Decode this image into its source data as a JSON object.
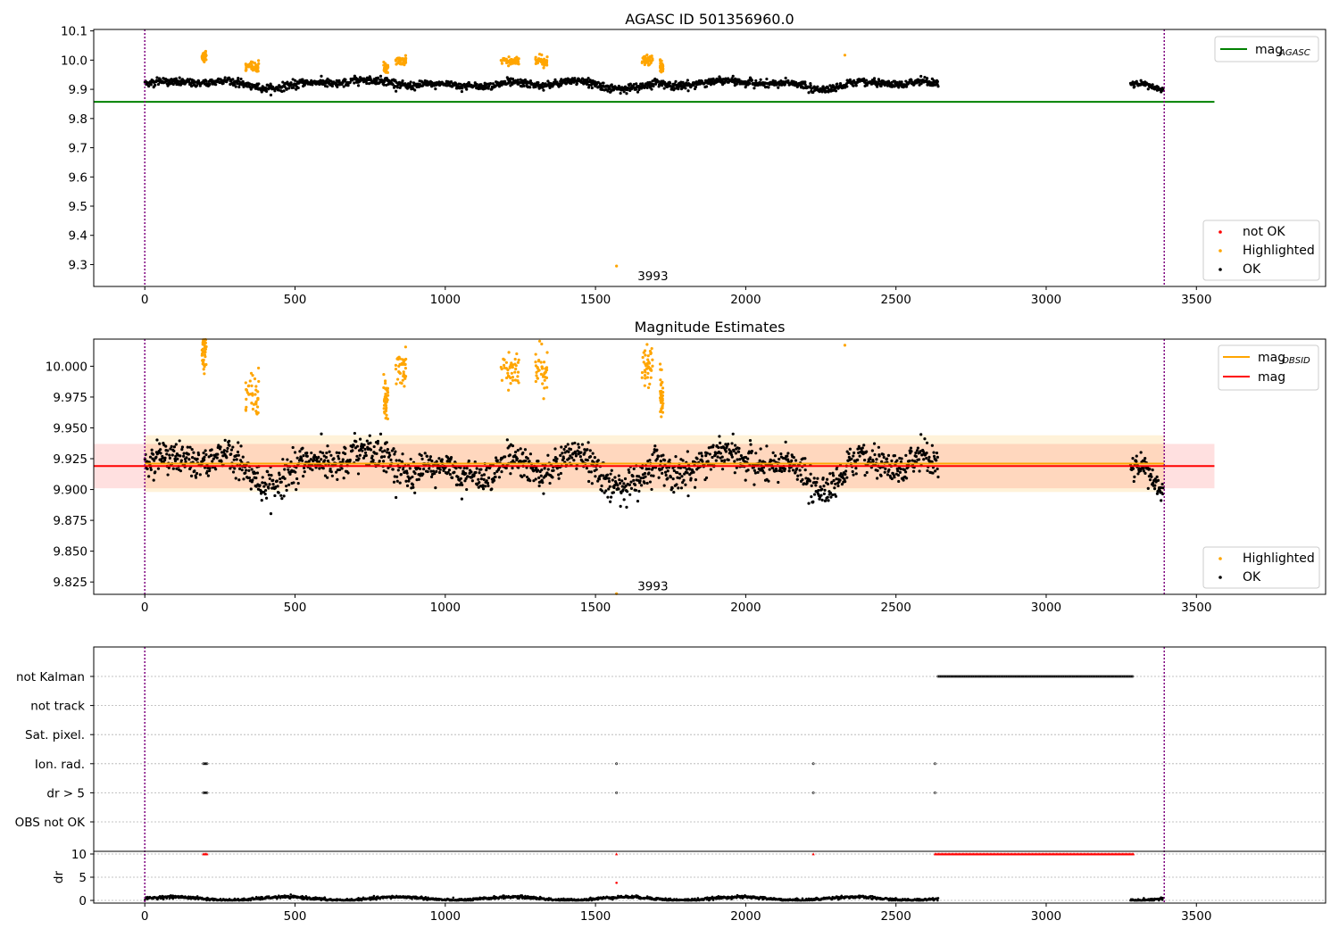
{
  "chart_data": [
    {
      "type": "scatter",
      "title": "AGASC ID 501356960.0",
      "xlim": [
        -170,
        3930
      ],
      "ylim": [
        9.225,
        10.105
      ],
      "xticks": [
        "0",
        "500",
        "1000",
        "1500",
        "2000",
        "2500",
        "3000",
        "3500"
      ],
      "yticks": [
        "9.3",
        "9.4",
        "9.5",
        "9.6",
        "9.7",
        "9.8",
        "9.9",
        "10.0",
        "10.1"
      ],
      "grid": false,
      "legend_upper": {
        "placement": "top-right",
        "entries": [
          {
            "label": "mag",
            "subscript": "AGASC",
            "color": "#008000"
          }
        ]
      },
      "legend_lower": {
        "placement": "bottom-right",
        "entries": [
          {
            "label": "not OK",
            "color": "#ff0000"
          },
          {
            "label": "Highlighted",
            "color": "#ffa500"
          },
          {
            "label": "OK",
            "color": "#000000"
          }
        ]
      },
      "mag_agasc": {
        "value": 9.857,
        "x_range": [
          -170,
          3560
        ]
      },
      "vlines": [
        0,
        3393
      ],
      "annotation": {
        "text": "3993",
        "x": 1640,
        "y": 9.262
      },
      "series": [
        {
          "name": "OK",
          "segments": [
            {
              "x_start": 0,
              "x_end": 2640,
              "mean": 9.918,
              "noise": 0.012
            },
            {
              "x_start": 3280,
              "x_end": 3390,
              "mean": 9.915,
              "noise": 0.01
            }
          ]
        },
        {
          "name": "Highlighted",
          "groups": [
            {
              "x_start": 190,
              "x_end": 205,
              "mean": 10.015
            },
            {
              "x_start": 335,
              "x_end": 380,
              "mean": 9.975
            },
            {
              "x_start": 795,
              "x_end": 810,
              "mean": 9.972
            },
            {
              "x_start": 835,
              "x_end": 870,
              "mean": 10.0
            },
            {
              "x_start": 1185,
              "x_end": 1245,
              "mean": 10.0
            },
            {
              "x_start": 1300,
              "x_end": 1340,
              "mean": 9.998
            },
            {
              "x_start": 1655,
              "x_end": 1690,
              "mean": 9.998
            },
            {
              "x_start": 1715,
              "x_end": 1725,
              "mean": 9.975
            }
          ],
          "singles": [
            {
              "x": 2330,
              "y": 10.017
            },
            {
              "x": 1570,
              "y": 9.295
            }
          ]
        }
      ]
    },
    {
      "type": "scatter",
      "title": "Magnitude Estimates",
      "xlim": [
        -170,
        3930
      ],
      "ylim": [
        9.815,
        10.022
      ],
      "xticks": [
        "0",
        "500",
        "1000",
        "1500",
        "2000",
        "2500",
        "3000",
        "3500"
      ],
      "yticks": [
        "9.825",
        "9.850",
        "9.875",
        "9.900",
        "9.925",
        "9.950",
        "9.975",
        "10.000"
      ],
      "grid": false,
      "legend_upper": {
        "placement": "top-right",
        "entries": [
          {
            "label": "mag",
            "subscript": "OBSID",
            "color": "#ffa500"
          },
          {
            "label": "mag",
            "color": "#ff0000"
          }
        ]
      },
      "legend_lower": {
        "placement": "bottom-right",
        "entries": [
          {
            "label": "Highlighted",
            "color": "#ffa500"
          },
          {
            "label": "OK",
            "color": "#000000"
          }
        ]
      },
      "mag_obsid": {
        "value": 9.921,
        "x_range": [
          0,
          3393
        ],
        "band": [
          9.898,
          9.944
        ]
      },
      "mag": {
        "value": 9.919,
        "x_range": [
          -170,
          3560
        ],
        "band": [
          9.901,
          9.937
        ]
      },
      "vlines": [
        0,
        3393
      ],
      "annotation": {
        "text": "3993",
        "x": 1640,
        "y": 9.822
      }
    },
    {
      "type": "scatter",
      "title": "",
      "xlim": [
        -170,
        3930
      ],
      "xticks": [
        "0",
        "500",
        "1000",
        "1500",
        "2000",
        "2500",
        "3000",
        "3500"
      ],
      "flag_categories": [
        "not Kalman",
        "not track",
        "Sat. pixel.",
        "Ion. rad.",
        "dr > 5",
        "OBS not OK"
      ],
      "flags": {
        "not Kalman": [
          [
            2640,
            3290
          ]
        ],
        "Ion. rad.": [
          [
            195,
            210
          ],
          [
            1570,
            1570
          ],
          [
            2225,
            2225
          ],
          [
            2630,
            2630
          ]
        ],
        "dr > 5": [
          [
            195,
            210
          ],
          [
            1570,
            1570
          ],
          [
            2225,
            2225
          ],
          [
            2630,
            2630
          ]
        ]
      },
      "dr_axis": {
        "ylabel": "dr",
        "yticks": [
          "0",
          "5",
          "10"
        ],
        "ylim": [
          -0.5,
          10.5
        ]
      },
      "dr_points": {
        "baseline": 0.4,
        "clip_value": 10,
        "clipped_ranges": [
          [
            195,
            210
          ],
          [
            1570,
            1570
          ],
          [
            2225,
            2225
          ],
          [
            2630,
            3290
          ]
        ],
        "extra": [
          {
            "x": 1570,
            "y": 3.8
          }
        ]
      },
      "vlines": [
        0,
        3393
      ]
    }
  ],
  "colors": {
    "ok": "#000000",
    "highlighted": "#ffa500",
    "not_ok": "#ff0000",
    "agasc": "#008000",
    "obsid": "#ffa500",
    "mag": "#ff0000",
    "vline": "#800080"
  }
}
